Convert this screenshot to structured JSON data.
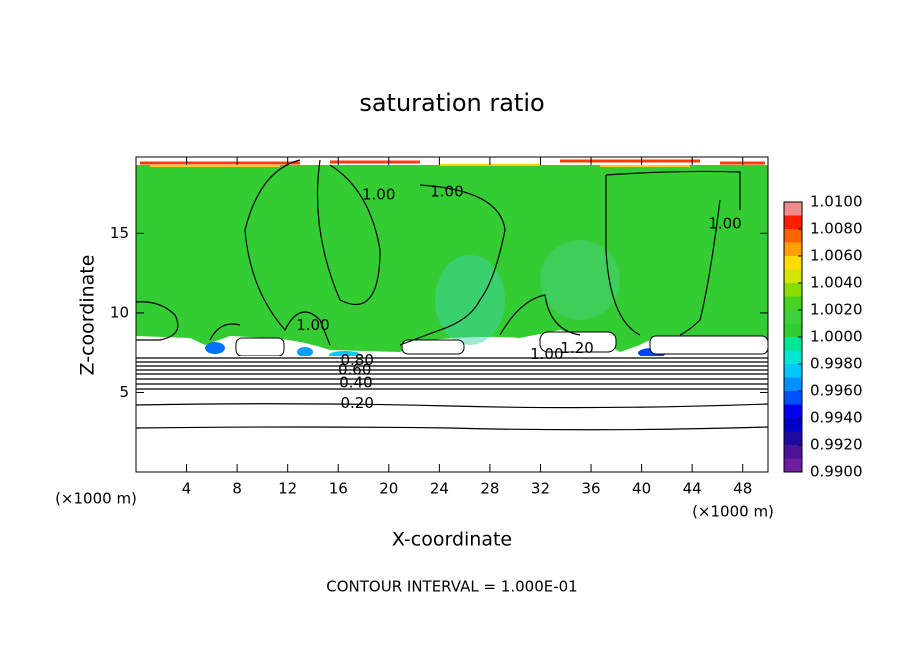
{
  "chart_data": {
    "type": "contour",
    "title": "saturation ratio",
    "x_label": "X-coordinate",
    "y_label": "Z-coordinate",
    "x_unit": "(×1000 m)",
    "footer": "CONTOUR INTERVAL = 1.000E-01",
    "xlim": [
      0,
      50
    ],
    "xticks": [
      4,
      8,
      12,
      16,
      20,
      24,
      28,
      32,
      36,
      40,
      44,
      48
    ],
    "ylim": [
      0,
      19.8
    ],
    "yticks": [
      5,
      10,
      15
    ],
    "colorbar": {
      "lim": [
        0.99,
        1.01
      ],
      "ticks": [
        {
          "value": 0.99,
          "label": "0.9900"
        },
        {
          "value": 0.992,
          "label": "0.9920"
        },
        {
          "value": 0.994,
          "label": "0.9940"
        },
        {
          "value": 0.996,
          "label": "0.9960"
        },
        {
          "value": 0.998,
          "label": "0.9980"
        },
        {
          "value": 1.0,
          "label": "1.0000"
        },
        {
          "value": 1.002,
          "label": "1.0020"
        },
        {
          "value": 1.004,
          "label": "1.0040"
        },
        {
          "value": 1.006,
          "label": "1.0060"
        },
        {
          "value": 1.008,
          "label": "1.0080"
        },
        {
          "value": 1.01,
          "label": "1.0100"
        }
      ],
      "colors": [
        "#6e1e9e",
        "#4b1496",
        "#1e0aa0",
        "#0000c8",
        "#0000f0",
        "#0050ff",
        "#0090ff",
        "#00c8ff",
        "#00e6d2",
        "#00e696",
        "#32cd32",
        "#3cd23c",
        "#46d21e",
        "#8cdc00",
        "#d2e600",
        "#ffdc00",
        "#ffa000",
        "#ff6400",
        "#ff1e00",
        "#f08c8c"
      ]
    },
    "contour_labels": [
      {
        "label": "1.00",
        "x": 19.2,
        "z": 17.4
      },
      {
        "label": "1.00",
        "x": 24.6,
        "z": 17.6
      },
      {
        "label": "1.00",
        "x": 46.6,
        "z": 15.6
      },
      {
        "label": "1.00",
        "x": 14.0,
        "z": 9.2
      },
      {
        "label": "1.00",
        "x": 32.5,
        "z": 7.4
      },
      {
        "label": "1.20",
        "x": 34.9,
        "z": 7.75
      },
      {
        "label": "0.80",
        "x": 17.5,
        "z": 7.0
      },
      {
        "label": "0.60",
        "x": 17.3,
        "z": 6.4
      },
      {
        "label": "0.40",
        "x": 17.4,
        "z": 5.6
      },
      {
        "label": "0.20",
        "x": 17.5,
        "z": 4.3
      }
    ]
  }
}
